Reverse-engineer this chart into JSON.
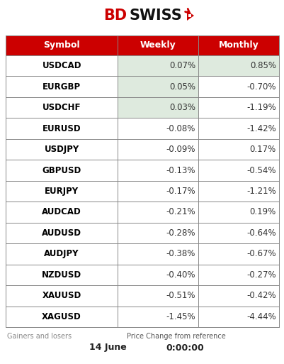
{
  "title_bd": "BD",
  "title_swiss": "SWISS",
  "header": [
    "Symbol",
    "Weekly",
    "Monthly"
  ],
  "rows": [
    [
      "USDCAD",
      "0.07%",
      "0.85%"
    ],
    [
      "EURGBP",
      "0.05%",
      "-0.70%"
    ],
    [
      "USDCHF",
      "0.03%",
      "-1.19%"
    ],
    [
      "EURUSD",
      "-0.08%",
      "-1.42%"
    ],
    [
      "USDJPY",
      "-0.09%",
      "0.17%"
    ],
    [
      "GBPUSD",
      "-0.13%",
      "-0.54%"
    ],
    [
      "EURJPY",
      "-0.17%",
      "-1.21%"
    ],
    [
      "AUDCAD",
      "-0.21%",
      "0.19%"
    ],
    [
      "AUDUSD",
      "-0.28%",
      "-0.64%"
    ],
    [
      "AUDJPY",
      "-0.38%",
      "-0.67%"
    ],
    [
      "NZDUSD",
      "-0.40%",
      "-0.27%"
    ],
    [
      "XAUUSD",
      "-0.51%",
      "-0.42%"
    ],
    [
      "XAGUSD",
      "-1.45%",
      "-4.44%"
    ]
  ],
  "green_weekly": [
    0,
    1,
    2
  ],
  "green_monthly": [
    0
  ],
  "header_bg": "#cc0000",
  "header_fg": "#ffffff",
  "green_bg": "#deeade",
  "white_bg": "#ffffff",
  "border_color": "#888888",
  "footer_left": "Gainers and losers",
  "footer_center": "Price Change from reference",
  "footer_date": "14 June",
  "footer_time": "0:00:00",
  "fig_width": 4.02,
  "fig_height": 5.13,
  "dpi": 100
}
